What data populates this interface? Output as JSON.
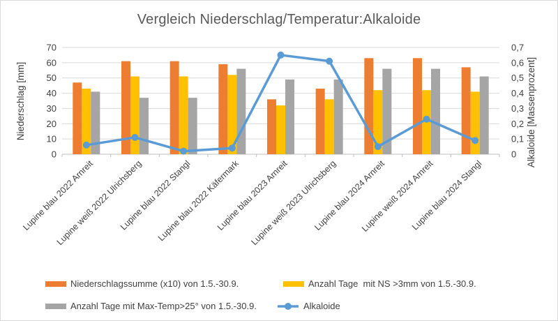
{
  "chart_data": {
    "type": "bar",
    "combo": "bar+line",
    "title": "Vergleich Niederschlag/Temperatur:Alkaloide",
    "categories": [
      "Lupine blau 2022 Arnreit",
      "Lupine weiß 2022 Ulrichsberg",
      "Lupine blau 2022 Stangl",
      "Lupine blau 2022 Käfermark",
      "Lupine blau 2023 Arnreit",
      "Lupine weiß 2023 Ulrichsberg",
      "Lupine blau 2024 Arnreit",
      "Lupine weiß  2024 Arnreit",
      "Lupine blau 2024 Stangl"
    ],
    "series": [
      {
        "name": "Niederschlagssumme (x10) von 1.5.-30.9.",
        "type": "bar",
        "axis": "left",
        "color": "#ED7D31",
        "values": [
          47,
          61,
          61,
          59,
          36,
          43,
          63,
          63,
          57
        ]
      },
      {
        "name": "Anzahl Tage  mit NS >3mm von 1.5.-30.9.",
        "type": "bar",
        "axis": "left",
        "color": "#FFC000",
        "values": [
          43,
          51,
          51,
          52,
          32,
          36,
          42,
          42,
          41
        ]
      },
      {
        "name": "Anzahl Tage mit Max-Temp>25° von 1.5.-30.9.",
        "type": "bar",
        "axis": "left",
        "color": "#A5A5A5",
        "values": [
          41,
          37,
          37,
          56,
          49,
          49,
          56,
          56,
          51
        ]
      },
      {
        "name": "Alkaloide",
        "type": "line",
        "axis": "right",
        "color": "#5B9BD5",
        "values": [
          0.06,
          0.11,
          0.02,
          0.04,
          0.65,
          0.61,
          0.05,
          0.23,
          0.09
        ]
      }
    ],
    "left_axis": {
      "title": "Niederschlag [mm]",
      "min": 0,
      "max": 70,
      "step": 10,
      "tick_labels": [
        "0",
        "10",
        "20",
        "30",
        "40",
        "50",
        "60",
        "70"
      ]
    },
    "right_axis": {
      "title": "Alkaloide [Massenprozent]",
      "min": 0,
      "max": 0.7,
      "step": 0.1,
      "tick_labels": [
        "0",
        "0,1",
        "0,2",
        "0,3",
        "0,4",
        "0,5",
        "0,6",
        "0,7"
      ]
    },
    "grid": true,
    "legend_position": "bottom",
    "colors": {
      "gridline": "#D9D9D9",
      "axis_line": "#BFBFBF",
      "text": "#404040",
      "title_text": "#595959"
    }
  }
}
